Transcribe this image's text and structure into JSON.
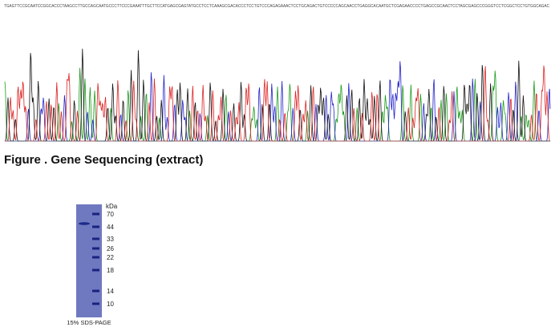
{
  "sequence": "TGAGTTCCGCAATCCGGCACCCTAAGCCTTGCCAGCAATGCCCTTCCCGAAATTTGCTTCCATGAGCGAGTATGCCTCCTCAAAGCGACACCCTCCTGTCCCAGAGAAACTCCTGCAGACTGTCCCCCAGCAACCTGAGGCACAATGCTCGAGAACCCCTGAGCCGCAACTCCTAGCGAGCCCGGGTCCTCGGCTCCTGTGGCAGAC",
  "caption": "Figure . Gene Sequencing (extract)",
  "gel": {
    "unit": "kDa",
    "markers": [
      70,
      44,
      33,
      26,
      22,
      18,
      14,
      10
    ],
    "label": "15% SDS-PAGE"
  }
}
